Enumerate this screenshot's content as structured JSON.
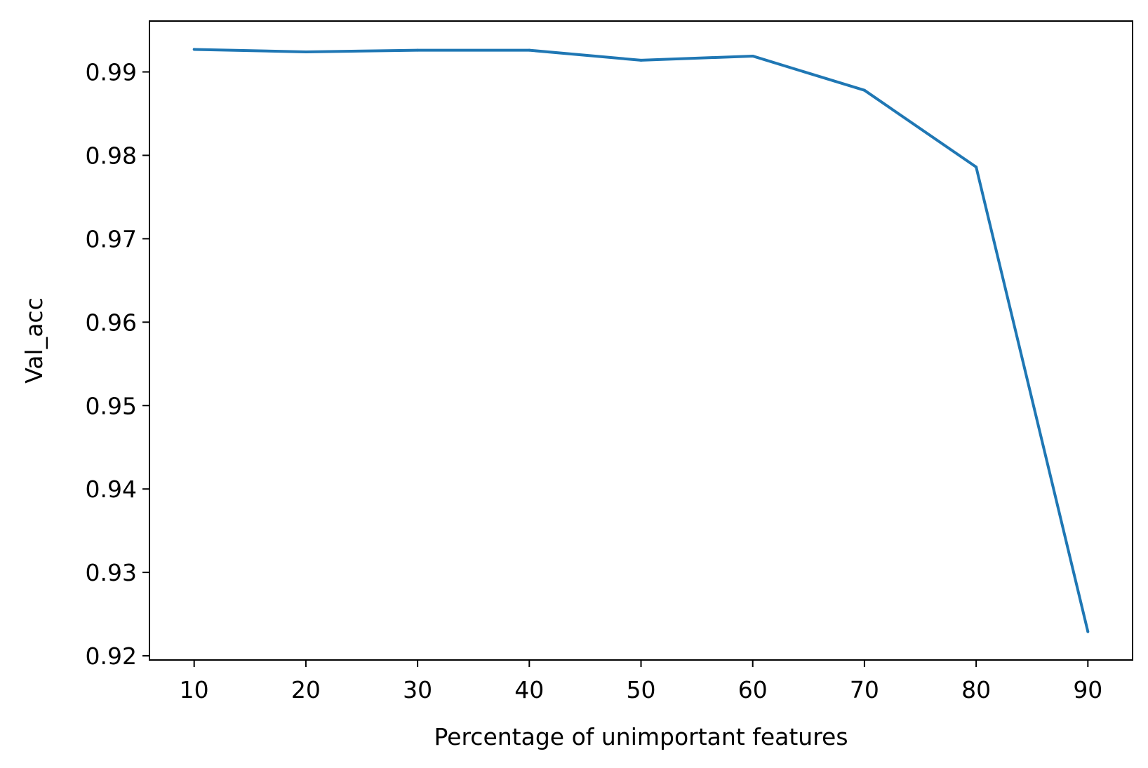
{
  "chart_data": {
    "type": "line",
    "title": "",
    "xlabel": "Percentage of unimportant features",
    "ylabel": "Val_acc",
    "x": [
      10,
      20,
      30,
      40,
      50,
      60,
      70,
      80,
      90
    ],
    "series": [
      {
        "values": [
          0.9927,
          0.9924,
          0.9926,
          0.9926,
          0.9914,
          0.9919,
          0.9878,
          0.9786,
          0.9229
        ],
        "color": "#1f77b4"
      }
    ],
    "xticks": [
      10,
      20,
      30,
      40,
      50,
      60,
      70,
      80,
      90
    ],
    "xtick_labels": [
      "10",
      "20",
      "30",
      "40",
      "50",
      "60",
      "70",
      "80",
      "90"
    ],
    "yticks": [
      0.92,
      0.93,
      0.94,
      0.95,
      0.96,
      0.97,
      0.98,
      0.99
    ],
    "ytick_labels": [
      "0.92",
      "0.93",
      "0.94",
      "0.95",
      "0.96",
      "0.97",
      "0.98",
      "0.99"
    ],
    "xlim": [
      6.0,
      94.0
    ],
    "ylim": [
      0.9195,
      0.9961
    ],
    "grid": false,
    "legend": "none"
  }
}
